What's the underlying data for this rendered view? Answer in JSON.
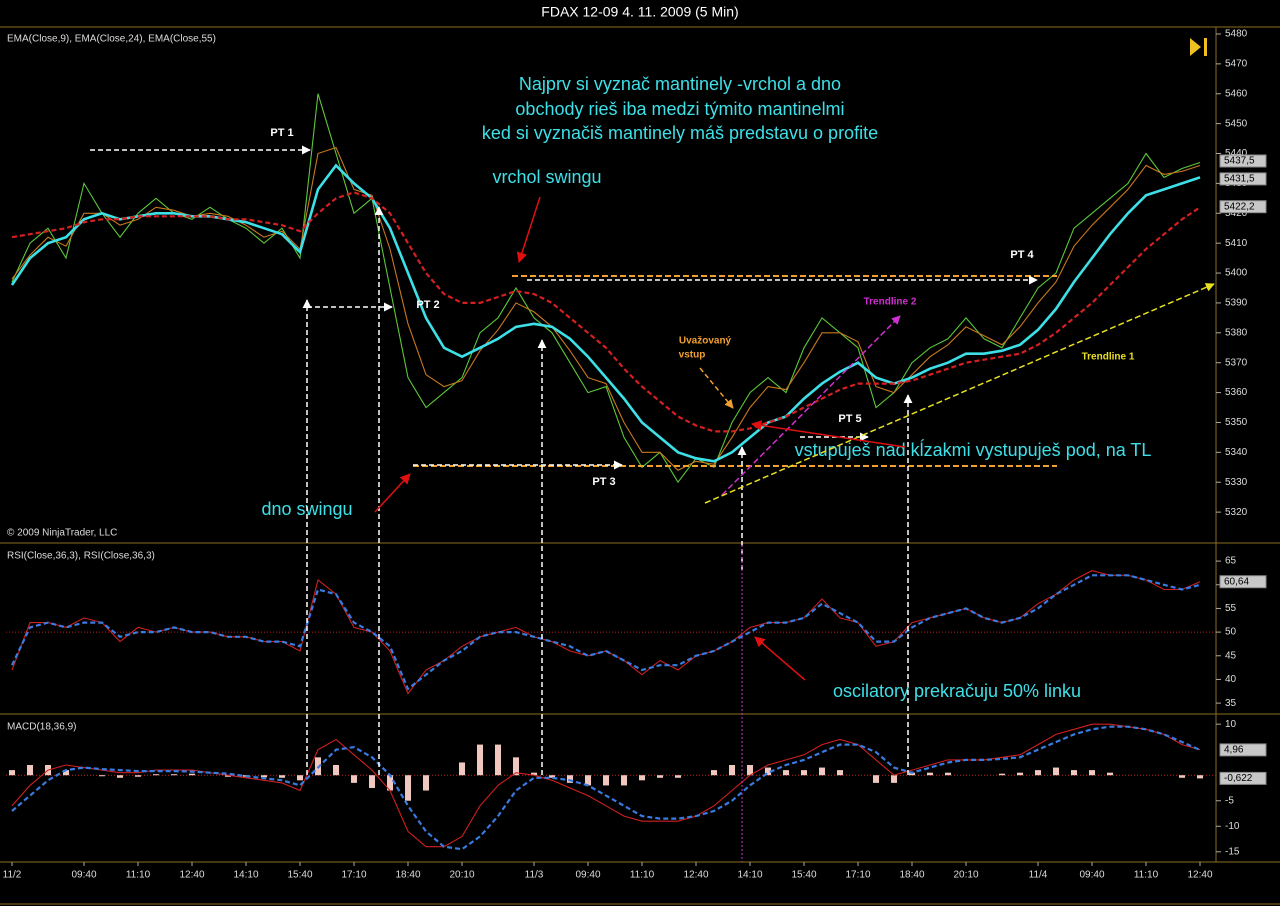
{
  "chart_data": [
    {
      "type": "line",
      "title": "FDAX 12-09  4. 11. 2009 (5 Min)",
      "legend": "EMA(Close,9), EMA(Close,24), EMA(Close,55)",
      "copyright": "© 2009 NinjaTrader, LLC",
      "ylim": [
        5310,
        5482
      ],
      "yticks": [
        5320,
        5330,
        5340,
        5350,
        5360,
        5370,
        5380,
        5390,
        5400,
        5410,
        5420,
        5430,
        5440,
        5450,
        5460,
        5470,
        5480
      ],
      "series": [
        {
          "type": "line",
          "color": "#5ac83a",
          "values": [
            5397,
            5410,
            5415,
            5405,
            5430,
            5420,
            5412,
            5420,
            5425,
            5420,
            5418,
            5422,
            5418,
            5415,
            5410,
            5415,
            5405,
            5460,
            5440,
            5420,
            5425,
            5395,
            5365,
            5355,
            5360,
            5365,
            5380,
            5385,
            5395,
            5385,
            5380,
            5370,
            5360,
            5362,
            5345,
            5335,
            5340,
            5330,
            5338,
            5335,
            5350,
            5360,
            5365,
            5360,
            5375,
            5385,
            5380,
            5375,
            5355,
            5360,
            5370,
            5375,
            5378,
            5385,
            5378,
            5375,
            5385,
            5395,
            5400,
            5415,
            5420,
            5425,
            5430,
            5440,
            5432,
            5435,
            5437
          ]
        },
        {
          "type": "line",
          "color": "#c8781e",
          "values": [
            5398,
            5406,
            5412,
            5409,
            5420,
            5420,
            5416,
            5418,
            5422,
            5421,
            5419,
            5420,
            5419,
            5416,
            5412,
            5414,
            5408,
            5440,
            5442,
            5428,
            5426,
            5408,
            5383,
            5366,
            5362,
            5364,
            5374,
            5381,
            5390,
            5387,
            5382,
            5374,
            5365,
            5363,
            5350,
            5340,
            5340,
            5334,
            5337,
            5336,
            5345,
            5355,
            5362,
            5361,
            5370,
            5380,
            5380,
            5377,
            5362,
            5360,
            5366,
            5372,
            5376,
            5382,
            5379,
            5376,
            5382,
            5390,
            5397,
            5409,
            5416,
            5422,
            5428,
            5436,
            5433,
            5434,
            5436
          ]
        },
        {
          "type": "line",
          "color": "#3ee0e8",
          "values": [
            5396,
            5405,
            5410,
            5412,
            5418,
            5420,
            5418,
            5419,
            5420,
            5420,
            5419,
            5419,
            5418,
            5417,
            5415,
            5413,
            5407,
            5428,
            5436,
            5430,
            5425,
            5415,
            5400,
            5385,
            5375,
            5372,
            5375,
            5378,
            5382,
            5383,
            5382,
            5378,
            5372,
            5365,
            5358,
            5350,
            5345,
            5340,
            5338,
            5337,
            5340,
            5345,
            5350,
            5352,
            5358,
            5363,
            5367,
            5370,
            5365,
            5363,
            5365,
            5368,
            5370,
            5373,
            5373,
            5374,
            5376,
            5381,
            5388,
            5397,
            5405,
            5413,
            5420,
            5426,
            5428,
            5430,
            5432
          ]
        },
        {
          "type": "line",
          "color": "#d42020",
          "dashed": true,
          "values": [
            5412,
            5413,
            5414,
            5415,
            5417,
            5418,
            5418,
            5419,
            5419,
            5419,
            5419,
            5419,
            5418,
            5418,
            5417,
            5416,
            5414,
            5420,
            5425,
            5427,
            5425,
            5420,
            5410,
            5400,
            5393,
            5390,
            5390,
            5392,
            5394,
            5393,
            5390,
            5385,
            5380,
            5375,
            5368,
            5362,
            5357,
            5352,
            5349,
            5347,
            5347,
            5348,
            5350,
            5352,
            5355,
            5358,
            5361,
            5363,
            5363,
            5363,
            5364,
            5366,
            5368,
            5370,
            5371,
            5372,
            5373,
            5376,
            5380,
            5385,
            5390,
            5396,
            5402,
            5408,
            5413,
            5418,
            5422
          ]
        }
      ],
      "markers": [
        {
          "value": 5437.5,
          "label": "5437,5"
        },
        {
          "value": 5431.5,
          "label": "5431,5"
        },
        {
          "value": 5422.2,
          "label": "5422,2"
        }
      ],
      "annotations": [
        "Najprv si vyznač mantinely -vrchol a dno",
        "obchody rieš iba medzi týmito mantinelmi",
        "ked si vyznačiš mantinely máš predstavu o profite",
        "vrchol swingu",
        "dno swingu",
        "vstupuješ nad kĺzakmi vystupuješ pod, na TL",
        "PT 1",
        "PT 2",
        "PT 3",
        "PT 4",
        "PT 5",
        "Uvažovaný",
        "vstup",
        "Trendline 2",
        "Trendline 1"
      ]
    },
    {
      "type": "line",
      "legend": "RSI(Close,36,3), RSI(Close,36,3)",
      "ylim": [
        32.7,
        68.4
      ],
      "yticks": [
        35,
        40,
        45,
        50,
        55,
        60,
        65
      ],
      "reference_line": 50,
      "series": [
        {
          "type": "line",
          "color": "#d02020",
          "values": [
            42,
            52,
            52,
            51,
            53,
            52,
            48,
            51,
            50,
            51,
            50,
            50,
            49,
            49,
            48,
            48,
            46,
            61,
            58,
            51,
            50,
            46,
            37,
            42,
            44,
            47,
            49,
            50,
            51,
            49,
            48,
            46,
            45,
            46,
            44,
            41,
            44,
            42,
            45,
            46,
            48,
            51,
            52,
            52,
            53,
            57,
            53,
            52,
            47,
            48,
            52,
            53,
            54,
            55,
            53,
            52,
            53,
            56,
            58,
            61,
            63,
            62,
            62,
            61,
            59,
            59,
            60.64
          ]
        },
        {
          "type": "line",
          "color": "#3a7be0",
          "dashed": true,
          "values": [
            43,
            51,
            52,
            51,
            52,
            52,
            49,
            50,
            50,
            51,
            50,
            50,
            49,
            49,
            48,
            48,
            47,
            59,
            58,
            52,
            50,
            47,
            38,
            41,
            44,
            46,
            49,
            50,
            50,
            49,
            48,
            47,
            45,
            46,
            44,
            42,
            43,
            43,
            45,
            46,
            48,
            50,
            52,
            52,
            53,
            56,
            54,
            52,
            48,
            48,
            51,
            53,
            54,
            55,
            53,
            52,
            53,
            55,
            58,
            60,
            62,
            62,
            62,
            61,
            60,
            59,
            60
          ]
        }
      ],
      "markers": [
        {
          "value": 60.64,
          "label": "60,64"
        }
      ],
      "annotations": [
        "oscilatory prekračuju 50% linku"
      ]
    },
    {
      "type": "line",
      "legend": "MACD(18,36,9)",
      "ylim": [
        -17,
        11.6
      ],
      "yticks": [
        -15,
        -10,
        -5,
        10
      ],
      "reference_line": 0,
      "categories": [
        "11/2",
        null,
        null,
        null,
        "09:40",
        null,
        null,
        "11:10",
        null,
        null,
        "12:40",
        null,
        null,
        "14:10",
        null,
        null,
        "15:40",
        null,
        null,
        "17:10",
        null,
        null,
        "18:40",
        null,
        null,
        "20:10",
        null,
        null,
        null,
        "11/3",
        null,
        null,
        "09:40",
        null,
        null,
        "11:10",
        null,
        null,
        "12:40",
        null,
        null,
        "14:10",
        null,
        null,
        "15:40",
        null,
        null,
        "17:10",
        null,
        null,
        "18:40",
        null,
        null,
        "20:10",
        null,
        null,
        null,
        "11/4",
        null,
        null,
        "09:40",
        null,
        null,
        "11:10",
        null,
        null,
        "12:40"
      ],
      "series": [
        {
          "type": "bar",
          "color": "#f0c8c0",
          "values": [
            1,
            2,
            2,
            1,
            0,
            -0.2,
            -0.5,
            -0.3,
            0.2,
            0.2,
            0.3,
            0,
            -0.3,
            -0.3,
            -0.4,
            -0.5,
            -1,
            3.5,
            2,
            -1.5,
            -2.5,
            -3,
            -5,
            -3,
            0,
            2.5,
            6,
            6,
            3.5,
            0.5,
            -0.5,
            -1.5,
            -2,
            -2,
            -2,
            -1,
            -0.5,
            -0.5,
            0,
            1,
            2,
            2,
            1.5,
            1,
            1,
            1.5,
            1,
            0,
            -1.5,
            -1.5,
            0.5,
            0.5,
            0.5,
            0,
            0,
            0.3,
            0.5,
            1,
            1.5,
            1,
            1,
            0.5,
            0,
            0,
            0,
            -0.5,
            -0.622
          ]
        },
        {
          "type": "line",
          "color": "#d02020",
          "values": [
            -6,
            -2,
            1,
            2,
            1.5,
            1,
            0.5,
            0.5,
            1,
            1,
            1,
            0.5,
            0,
            -0.5,
            -1,
            -1.5,
            -3,
            5,
            7,
            4,
            1,
            -3,
            -11,
            -14,
            -14,
            -12,
            -6,
            -2,
            0.5,
            0,
            -1,
            -2.5,
            -4,
            -6,
            -8,
            -9,
            -9,
            -9,
            -8,
            -6,
            -3,
            0,
            2,
            3,
            4,
            6,
            7,
            6,
            3,
            0,
            1,
            2,
            3,
            3,
            3,
            3.5,
            4,
            6,
            8,
            9,
            10,
            10,
            9.5,
            9,
            8,
            6,
            5
          ]
        },
        {
          "type": "line",
          "color": "#3a7be0",
          "dashed": true,
          "values": [
            -7,
            -4,
            -1,
            1,
            1.5,
            1.2,
            1,
            0.8,
            0.8,
            0.8,
            0.7,
            0.5,
            0.3,
            -0.2,
            -0.6,
            -1,
            -2,
            1.5,
            5,
            5.5,
            3.5,
            0,
            -6,
            -11,
            -14,
            -14.5,
            -12,
            -8,
            -3,
            -0.5,
            -0.5,
            -1,
            -2,
            -4,
            -6,
            -8,
            -8.5,
            -8.5,
            -8,
            -7,
            -5,
            -2,
            0.5,
            2,
            3,
            4.5,
            6,
            6,
            4.5,
            1.5,
            0.5,
            1.5,
            2.5,
            3,
            3,
            3.2,
            3.5,
            5,
            6.5,
            8,
            9,
            9.5,
            9.5,
            9,
            8,
            6.5,
            4.96
          ]
        }
      ],
      "markers": [
        {
          "value": 4.96,
          "label": "4,96"
        },
        {
          "value": -0.622,
          "label": "-0,622"
        }
      ]
    }
  ]
}
